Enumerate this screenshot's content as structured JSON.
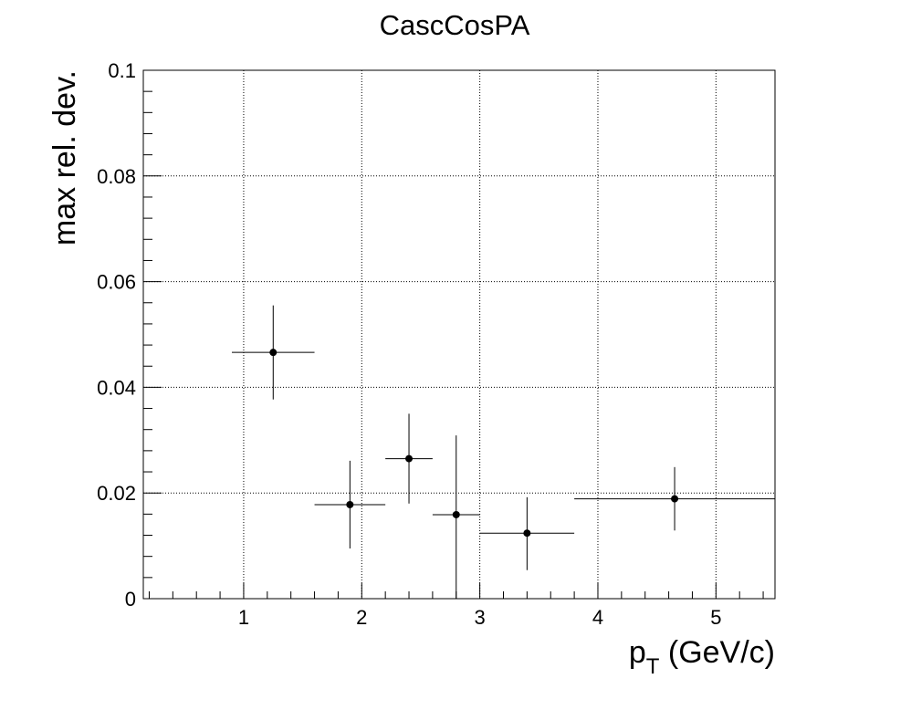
{
  "chart_data": {
    "type": "scatter",
    "title": "CascCosPA",
    "xlabel": {
      "main": "p",
      "sub": "T",
      "tail": " (GeV/c)"
    },
    "ylabel": "max rel. dev.",
    "xlim": [
      0.15,
      5.5
    ],
    "ylim": [
      0,
      0.1
    ],
    "x_ticks": [
      1,
      2,
      3,
      4,
      5
    ],
    "x_tick_labels": [
      "1",
      "2",
      "3",
      "4",
      "5"
    ],
    "y_ticks": [
      0,
      0.02,
      0.04,
      0.06,
      0.08,
      0.1
    ],
    "y_tick_labels": [
      "0",
      "0.02",
      "0.04",
      "0.06",
      "0.08",
      "0.1"
    ],
    "grid": true,
    "legend": "none",
    "points": [
      {
        "x": 1.25,
        "y": 0.0466,
        "xerr": 0.35,
        "yerr_low": 0.0089,
        "yerr_high": 0.0089
      },
      {
        "x": 1.9,
        "y": 0.0178,
        "xerr": 0.3,
        "yerr_low": 0.0083,
        "yerr_high": 0.0083
      },
      {
        "x": 2.4,
        "y": 0.0265,
        "xerr": 0.2,
        "yerr_low": 0.0085,
        "yerr_high": 0.0085
      },
      {
        "x": 2.8,
        "y": 0.0159,
        "xerr": 0.2,
        "yerr_low": 0.0159,
        "yerr_high": 0.015
      },
      {
        "x": 3.4,
        "y": 0.0124,
        "xerr": 0.4,
        "yerr_low": 0.007,
        "yerr_high": 0.0068
      },
      {
        "x": 4.65,
        "y": 0.0189,
        "xerr": 0.85,
        "yerr_low": 0.006,
        "yerr_high": 0.006
      }
    ],
    "colors": {
      "marker": "#000000",
      "axis": "#000000",
      "grid": "#000000"
    }
  }
}
